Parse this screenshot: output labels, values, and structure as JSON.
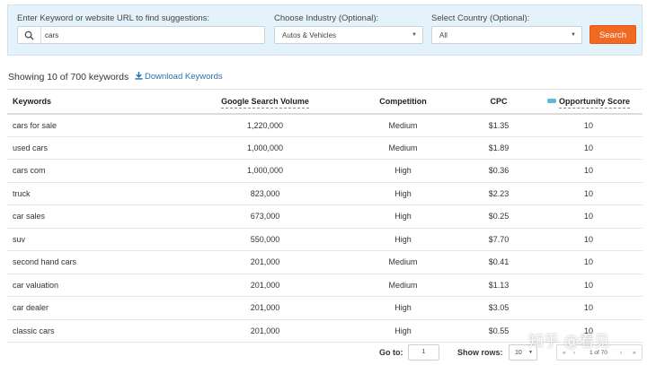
{
  "search": {
    "keyword_label": "Enter Keyword or website URL to find suggestions:",
    "keyword_value": "cars",
    "industry_label": "Choose Industry (Optional):",
    "industry_value": "Autos & Vehicles",
    "country_label": "Select Country (Optional):",
    "country_value": "All",
    "search_button": "Search"
  },
  "summary": {
    "showing": "Showing 10 of 700 keywords",
    "download": "Download Keywords"
  },
  "table": {
    "columns": [
      "Keywords",
      "Google Search Volume",
      "Competition",
      "CPC",
      "Opportunity Score"
    ],
    "rows": [
      {
        "keyword": "cars for sale",
        "volume": "1,220,000",
        "competition": "Medium",
        "cpc": "$1.35",
        "score": "10"
      },
      {
        "keyword": "used cars",
        "volume": "1,000,000",
        "competition": "Medium",
        "cpc": "$1.89",
        "score": "10"
      },
      {
        "keyword": "cars com",
        "volume": "1,000,000",
        "competition": "High",
        "cpc": "$0.36",
        "score": "10"
      },
      {
        "keyword": "truck",
        "volume": "823,000",
        "competition": "High",
        "cpc": "$2.23",
        "score": "10"
      },
      {
        "keyword": "car sales",
        "volume": "673,000",
        "competition": "High",
        "cpc": "$0.25",
        "score": "10"
      },
      {
        "keyword": "suv",
        "volume": "550,000",
        "competition": "High",
        "cpc": "$7.70",
        "score": "10"
      },
      {
        "keyword": "second hand cars",
        "volume": "201,000",
        "competition": "Medium",
        "cpc": "$0.41",
        "score": "10"
      },
      {
        "keyword": "car valuation",
        "volume": "201,000",
        "competition": "Medium",
        "cpc": "$1.13",
        "score": "10"
      },
      {
        "keyword": "car dealer",
        "volume": "201,000",
        "competition": "High",
        "cpc": "$3.05",
        "score": "10"
      },
      {
        "keyword": "classic cars",
        "volume": "201,000",
        "competition": "High",
        "cpc": "$0.55",
        "score": "10"
      }
    ]
  },
  "pager": {
    "goto_label": "Go to:",
    "goto_value": "1",
    "rows_label": "Show rows:",
    "rows_value": "10",
    "page_info": "1 of 70",
    "first": "«",
    "prev": "‹",
    "next": "›",
    "last": "»"
  },
  "watermark": "知乎 @看见",
  "colors": {
    "accent": "#f26922",
    "panel": "#e4f3fb",
    "link": "#2a6fb0"
  },
  "icons": {
    "search": "search-icon",
    "download": "download-icon",
    "opportunity": "opportunity-icon"
  }
}
